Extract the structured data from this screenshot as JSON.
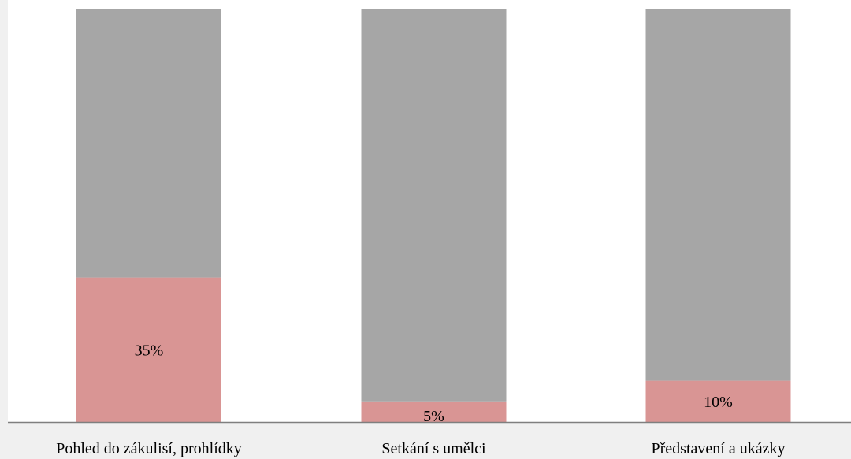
{
  "chart_data": {
    "type": "bar",
    "stacked": true,
    "categories": [
      "Pohled do zákulisí, prohlídky",
      "Setkání s umělci",
      "Představení a ukázky"
    ],
    "series": [
      {
        "values": [
          35,
          5,
          10
        ],
        "labels": [
          "35%",
          "5%",
          "10%"
        ]
      },
      {
        "values": [
          65,
          95,
          90
        ]
      }
    ],
    "ylim": [
      0,
      100
    ],
    "grid": false,
    "legend": "none",
    "colors": {
      "page_background": "#f0f0f0",
      "plot_background": "#ffffff",
      "highlight": "#d99594",
      "remainder": "#a6a6a6",
      "axis": "#7f7f7f",
      "text": "#000000"
    }
  }
}
